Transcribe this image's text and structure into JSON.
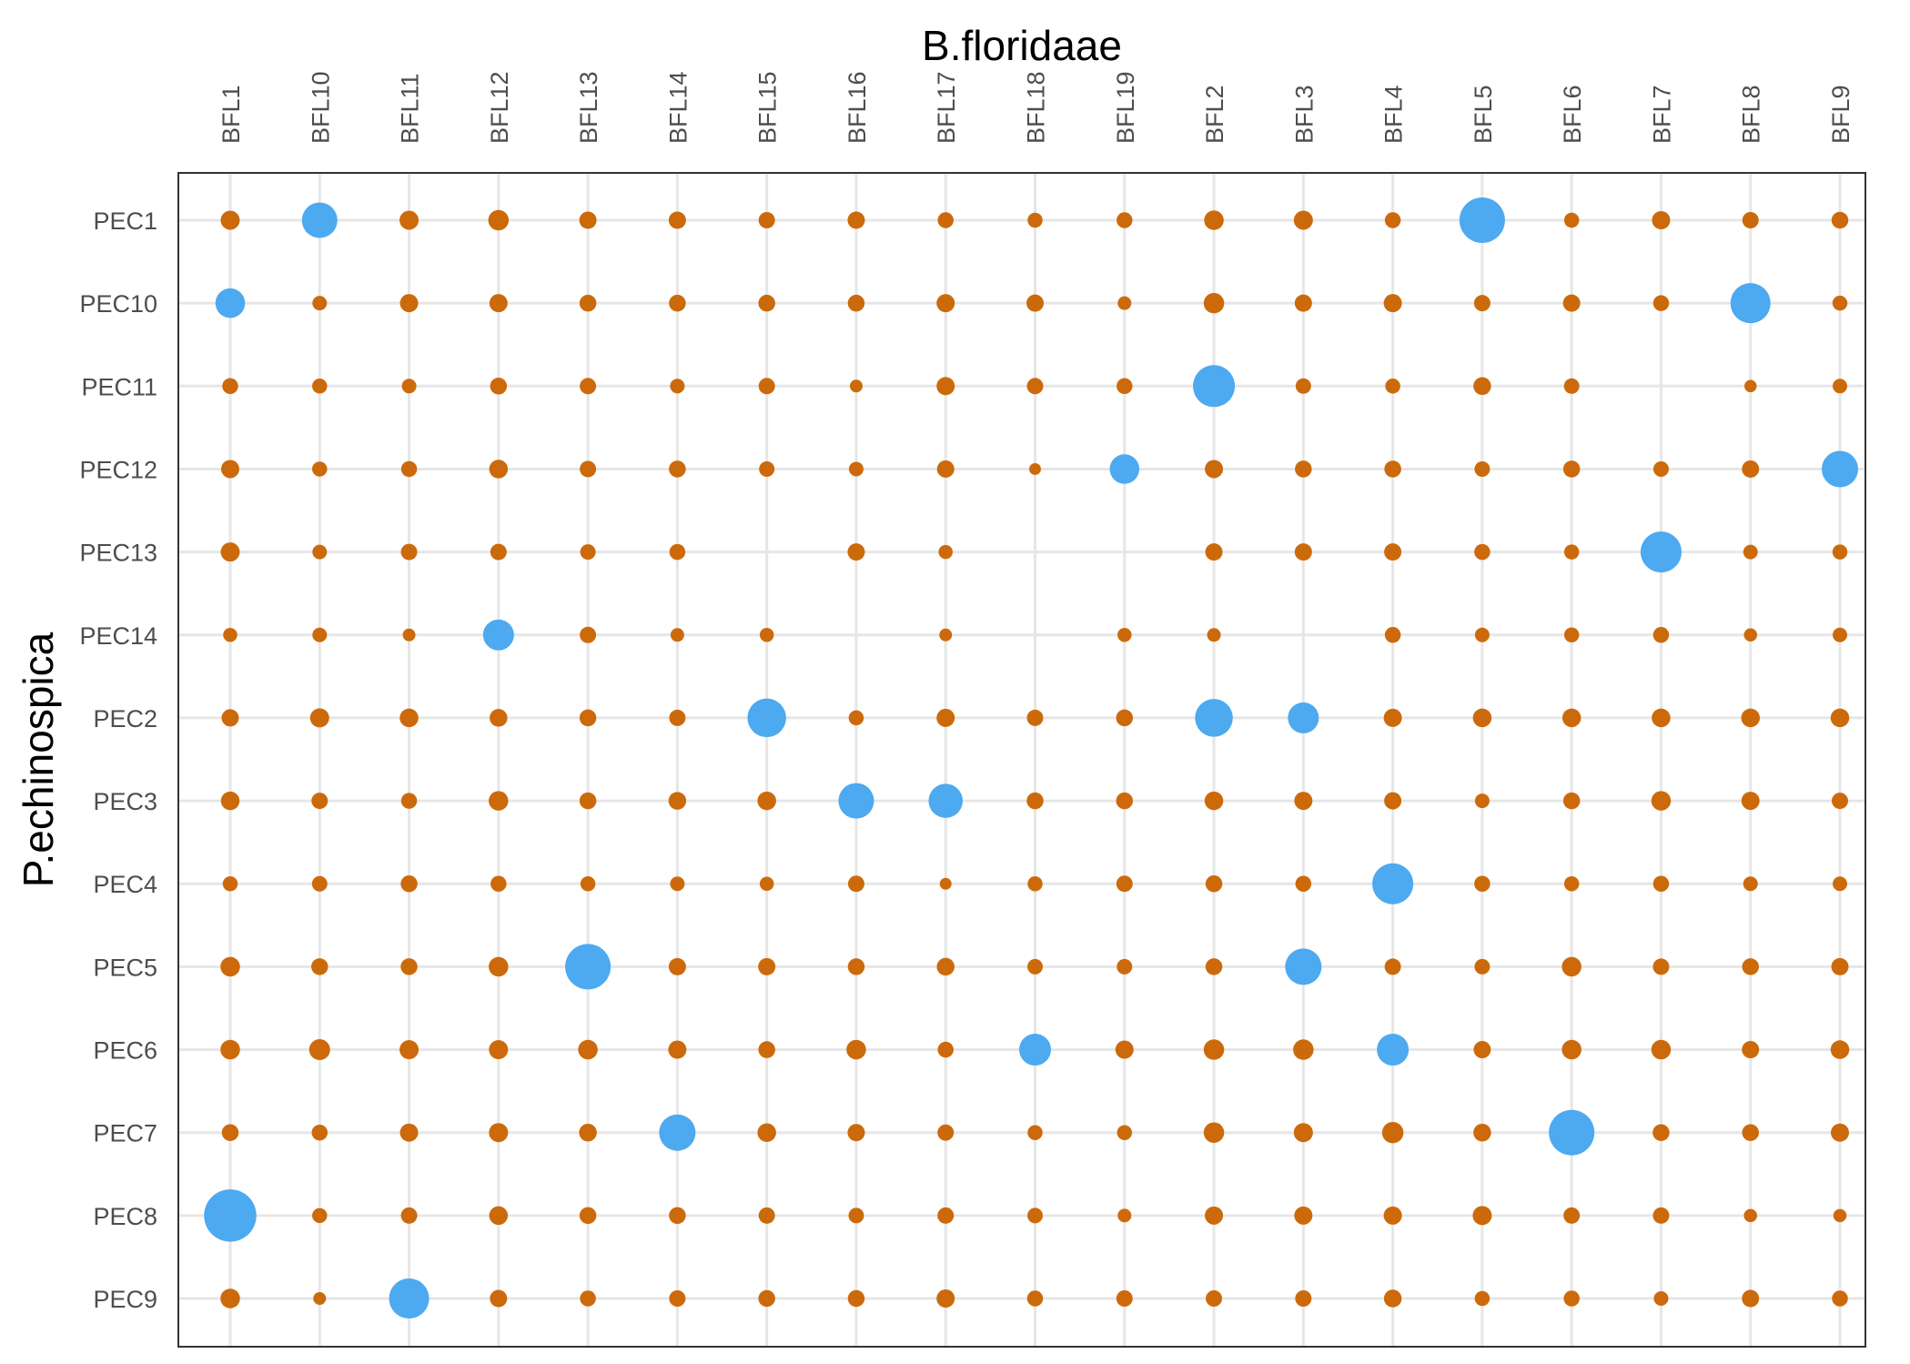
{
  "chart_data": {
    "type": "scatter",
    "subtype": "dot-matrix",
    "xlabel": "B.floridaae",
    "ylabel": "P.echinospica",
    "x_position": "top",
    "grid": true,
    "legend": "none",
    "x_categories": [
      "BFL1",
      "BFL10",
      "BFL11",
      "BFL12",
      "BFL13",
      "BFL14",
      "BFL15",
      "BFL16",
      "BFL17",
      "BFL18",
      "BFL19",
      "BFL2",
      "BFL3",
      "BFL4",
      "BFL5",
      "BFL6",
      "BFL7",
      "BFL8",
      "BFL9"
    ],
    "y_categories": [
      "PEC1",
      "PEC10",
      "PEC11",
      "PEC12",
      "PEC13",
      "PEC14",
      "PEC2",
      "PEC3",
      "PEC4",
      "PEC5",
      "PEC6",
      "PEC7",
      "PEC8",
      "PEC9"
    ],
    "colors": {
      "highlight": "#4da9f0",
      "default": "#cc6a0b"
    },
    "size_scale": "relative 0-1",
    "values": [
      [
        0.42,
        0.78,
        0.42,
        0.45,
        0.38,
        0.38,
        0.36,
        0.38,
        0.35,
        0.33,
        0.35,
        0.43,
        0.42,
        0.35,
        1.0,
        0.33,
        0.4,
        0.36,
        0.37
      ],
      [
        0.65,
        0.32,
        0.4,
        0.4,
        0.37,
        0.37,
        0.37,
        0.37,
        0.4,
        0.38,
        0.3,
        0.45,
        0.38,
        0.4,
        0.36,
        0.38,
        0.35,
        0.88,
        0.33
      ],
      [
        0.35,
        0.33,
        0.32,
        0.37,
        0.36,
        0.32,
        0.36,
        0.28,
        0.4,
        0.36,
        0.35,
        0.92,
        0.34,
        0.33,
        0.39,
        0.34,
        null,
        0.27,
        0.32
      ],
      [
        0.4,
        0.33,
        0.35,
        0.41,
        0.36,
        0.37,
        0.34,
        0.32,
        0.38,
        0.26,
        0.65,
        0.4,
        0.37,
        0.37,
        0.34,
        0.37,
        0.34,
        0.38,
        0.8
      ],
      [
        0.42,
        0.32,
        0.36,
        0.36,
        0.34,
        0.35,
        null,
        0.38,
        0.31,
        null,
        null,
        0.38,
        0.38,
        0.38,
        0.35,
        0.33,
        0.9,
        0.32,
        0.33
      ],
      [
        0.31,
        0.32,
        0.28,
        0.68,
        0.36,
        0.3,
        0.31,
        null,
        0.28,
        null,
        0.31,
        0.3,
        null,
        0.35,
        0.32,
        0.33,
        0.35,
        0.29,
        0.32
      ],
      [
        0.38,
        0.42,
        0.41,
        0.39,
        0.37,
        0.36,
        0.85,
        0.33,
        0.4,
        0.36,
        0.37,
        0.83,
        0.68,
        0.4,
        0.41,
        0.41,
        0.41,
        0.41,
        0.41
      ],
      [
        0.41,
        0.36,
        0.35,
        0.43,
        0.37,
        0.39,
        0.41,
        0.78,
        0.75,
        0.37,
        0.37,
        0.41,
        0.4,
        0.38,
        0.32,
        0.37,
        0.43,
        0.4,
        0.36
      ],
      [
        0.33,
        0.34,
        0.37,
        0.35,
        0.33,
        0.32,
        0.31,
        0.36,
        0.26,
        0.33,
        0.36,
        0.37,
        0.35,
        0.9,
        0.35,
        0.33,
        0.35,
        0.32,
        0.32
      ],
      [
        0.43,
        0.37,
        0.37,
        0.43,
        1.0,
        0.38,
        0.38,
        0.37,
        0.39,
        0.34,
        0.34,
        0.37,
        0.8,
        0.36,
        0.34,
        0.43,
        0.36,
        0.37,
        0.38
      ],
      [
        0.43,
        0.46,
        0.42,
        0.42,
        0.43,
        0.4,
        0.37,
        0.43,
        0.35,
        0.7,
        0.4,
        0.45,
        0.45,
        0.7,
        0.38,
        0.43,
        0.43,
        0.38,
        0.41
      ],
      [
        0.37,
        0.35,
        0.4,
        0.42,
        0.39,
        0.8,
        0.41,
        0.38,
        0.36,
        0.33,
        0.33,
        0.45,
        0.42,
        0.47,
        0.39,
        1.0,
        0.37,
        0.37,
        0.4
      ],
      [
        1.15,
        0.33,
        0.36,
        0.41,
        0.37,
        0.37,
        0.36,
        0.34,
        0.36,
        0.34,
        0.3,
        0.4,
        0.4,
        0.4,
        0.42,
        0.36,
        0.36,
        0.29,
        0.29
      ],
      [
        0.43,
        0.28,
        0.88,
        0.38,
        0.35,
        0.36,
        0.37,
        0.37,
        0.4,
        0.35,
        0.36,
        0.36,
        0.36,
        0.39,
        0.33,
        0.35,
        0.32,
        0.38,
        0.35
      ]
    ],
    "highlighted": [
      [
        "PEC1",
        "BFL10"
      ],
      [
        "PEC1",
        "BFL5"
      ],
      [
        "PEC10",
        "BFL1"
      ],
      [
        "PEC10",
        "BFL8"
      ],
      [
        "PEC11",
        "BFL2"
      ],
      [
        "PEC12",
        "BFL19"
      ],
      [
        "PEC12",
        "BFL9"
      ],
      [
        "PEC13",
        "BFL7"
      ],
      [
        "PEC14",
        "BFL12"
      ],
      [
        "PEC2",
        "BFL15"
      ],
      [
        "PEC2",
        "BFL2"
      ],
      [
        "PEC2",
        "BFL3"
      ],
      [
        "PEC3",
        "BFL16"
      ],
      [
        "PEC3",
        "BFL17"
      ],
      [
        "PEC4",
        "BFL4"
      ],
      [
        "PEC5",
        "BFL13"
      ],
      [
        "PEC5",
        "BFL3"
      ],
      [
        "PEC6",
        "BFL18"
      ],
      [
        "PEC6",
        "BFL4"
      ],
      [
        "PEC7",
        "BFL14"
      ],
      [
        "PEC7",
        "BFL6"
      ],
      [
        "PEC8",
        "BFL1"
      ],
      [
        "PEC9",
        "BFL11"
      ]
    ]
  }
}
